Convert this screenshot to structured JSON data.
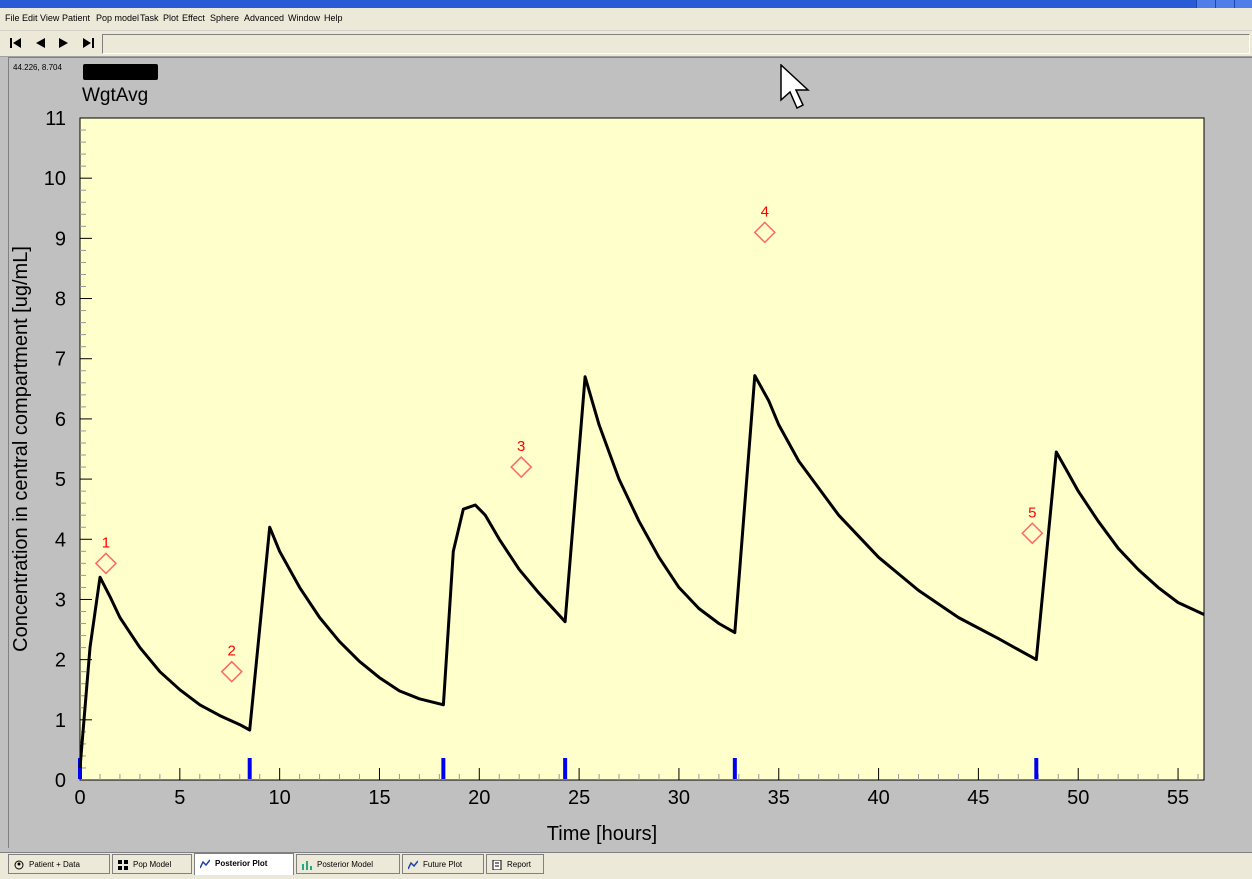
{
  "menu": [
    "File",
    "Edit",
    "View",
    "Patient",
    "Pop model",
    "Task",
    "Plot",
    "Effect",
    "Sphere",
    "Advanced",
    "Window",
    "Help"
  ],
  "toolbar": {
    "first_icon": "skip-to-start-icon",
    "prev_icon": "step-back-icon",
    "next_icon": "step-forward-icon",
    "last_icon": "skip-to-end-icon"
  },
  "plot": {
    "coordinate_readout": "44.226, 8.704",
    "title": "WgtAvg"
  },
  "tabs": [
    {
      "label": "Patient + Data",
      "icon": "patient-icon",
      "active": false
    },
    {
      "label": "Pop Model",
      "icon": "grid-icon",
      "active": false
    },
    {
      "label": "Posterior Plot",
      "icon": "plot-icon",
      "active": true
    },
    {
      "label": "Posterior Model",
      "icon": "bar-chart-icon",
      "active": false
    },
    {
      "label": "Future Plot",
      "icon": "plot-icon",
      "active": false
    },
    {
      "label": "Report",
      "icon": "report-icon",
      "active": false
    }
  ],
  "colors": {
    "plot_background": "#ffffcc",
    "curve": "#000000",
    "observation": "#ff6666",
    "observation_label": "#ff0000",
    "dose_marker": "#0000ee"
  },
  "chart_data": {
    "type": "line",
    "xlabel": "Time [hours]",
    "ylabel": "Concentration in central compartment [ug/mL]",
    "xlim": [
      0,
      56.3
    ],
    "ylim": [
      0,
      11
    ],
    "xticks": [
      0,
      5,
      10,
      15,
      20,
      25,
      30,
      35,
      40,
      45,
      50,
      55
    ],
    "yticks": [
      0,
      1,
      2,
      3,
      4,
      5,
      6,
      7,
      8,
      9,
      10,
      11
    ],
    "grid": false,
    "curve": {
      "x": [
        0,
        0.5,
        1.0,
        1.5,
        2,
        3,
        4,
        5,
        6,
        7,
        8,
        8.5,
        9.5,
        10,
        11,
        12,
        13,
        14,
        15,
        16,
        17,
        18.2,
        18.7,
        19.2,
        19.8,
        20.3,
        21,
        22,
        23,
        24.3,
        25.3,
        26,
        27,
        28,
        29,
        30,
        31,
        32,
        32.8,
        33.8,
        34.5,
        35,
        36,
        38,
        40,
        42,
        44,
        46,
        47.9,
        48.9,
        49.5,
        50,
        51,
        52,
        53,
        54,
        55,
        56.3
      ],
      "y": [
        0.2,
        2.2,
        3.37,
        3.05,
        2.7,
        2.2,
        1.8,
        1.5,
        1.25,
        1.07,
        0.92,
        0.83,
        4.2,
        3.8,
        3.2,
        2.7,
        2.3,
        1.97,
        1.7,
        1.48,
        1.35,
        1.25,
        3.8,
        4.5,
        4.57,
        4.4,
        4.0,
        3.5,
        3.1,
        2.63,
        6.7,
        5.9,
        5.0,
        4.3,
        3.7,
        3.2,
        2.85,
        2.6,
        2.45,
        6.72,
        6.3,
        5.9,
        5.3,
        4.4,
        3.7,
        3.15,
        2.7,
        2.35,
        2.0,
        5.45,
        5.1,
        4.8,
        4.3,
        3.85,
        3.5,
        3.2,
        2.95,
        2.75
      ]
    },
    "observations": [
      {
        "label": "1",
        "x": 1.3,
        "y": 3.6
      },
      {
        "label": "2",
        "x": 7.6,
        "y": 1.8
      },
      {
        "label": "3",
        "x": 22.1,
        "y": 5.2
      },
      {
        "label": "4",
        "x": 34.3,
        "y": 9.1
      },
      {
        "label": "5",
        "x": 47.7,
        "y": 4.1
      }
    ],
    "doses": [
      0,
      8.5,
      18.2,
      24.3,
      32.8,
      47.9
    ]
  }
}
